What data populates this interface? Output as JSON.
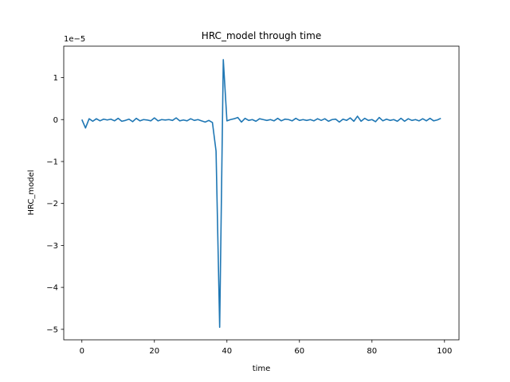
{
  "chart_data": {
    "type": "line",
    "title": "HRC_model through time",
    "xlabel": "time",
    "ylabel": "HRC_model",
    "y_offset_label": "1e−5",
    "y_scale_exponent": -5,
    "xlim": [
      -5,
      104
    ],
    "ylim": [
      -5.25,
      1.75
    ],
    "x_ticks": [
      0,
      20,
      40,
      60,
      80,
      100
    ],
    "y_ticks": [
      -5,
      -4,
      -3,
      -2,
      -1,
      0,
      1
    ],
    "grid": false,
    "legend": "none",
    "series": [
      {
        "color": "#1f77b4",
        "x": [
          0,
          1,
          2,
          3,
          4,
          5,
          6,
          7,
          8,
          9,
          10,
          11,
          12,
          13,
          14,
          15,
          16,
          17,
          18,
          19,
          20,
          21,
          22,
          23,
          24,
          25,
          26,
          27,
          28,
          29,
          30,
          31,
          32,
          33,
          34,
          35,
          36,
          37,
          38,
          39,
          40,
          41,
          42,
          43,
          44,
          45,
          46,
          47,
          48,
          49,
          50,
          51,
          52,
          53,
          54,
          55,
          56,
          57,
          58,
          59,
          60,
          61,
          62,
          63,
          64,
          65,
          66,
          67,
          68,
          69,
          70,
          71,
          72,
          73,
          74,
          75,
          76,
          77,
          78,
          79,
          80,
          81,
          82,
          83,
          84,
          85,
          86,
          87,
          88,
          89,
          90,
          91,
          92,
          93,
          94,
          95,
          96,
          97,
          98,
          99
        ],
        "y": [
          0.0,
          -0.2,
          0.02,
          -0.04,
          0.02,
          -0.03,
          0.01,
          -0.01,
          0.01,
          -0.03,
          0.03,
          -0.04,
          -0.02,
          0.01,
          -0.05,
          0.03,
          -0.03,
          0.0,
          -0.01,
          -0.03,
          0.04,
          -0.03,
          0.0,
          -0.01,
          0.0,
          -0.02,
          0.04,
          -0.03,
          -0.01,
          -0.03,
          0.02,
          -0.02,
          0.0,
          -0.03,
          -0.06,
          -0.02,
          -0.07,
          -0.75,
          -4.95,
          1.43,
          -0.03,
          0.0,
          0.02,
          0.05,
          -0.06,
          0.03,
          -0.02,
          0.0,
          -0.04,
          0.02,
          0.0,
          -0.02,
          0.0,
          -0.03,
          0.03,
          -0.03,
          0.01,
          0.0,
          -0.03,
          0.03,
          -0.02,
          0.0,
          -0.02,
          0.0,
          -0.03,
          0.02,
          -0.02,
          0.02,
          -0.04,
          0.0,
          0.01,
          -0.06,
          0.01,
          -0.02,
          0.04,
          -0.04,
          0.08,
          -0.04,
          0.03,
          -0.02,
          0.0,
          -0.05,
          0.05,
          -0.03,
          0.01,
          -0.02,
          0.0,
          -0.04,
          0.03,
          -0.04,
          0.02,
          -0.02,
          0.0,
          -0.03,
          0.02,
          -0.03,
          0.03,
          -0.03,
          -0.01,
          0.03
        ]
      }
    ]
  }
}
